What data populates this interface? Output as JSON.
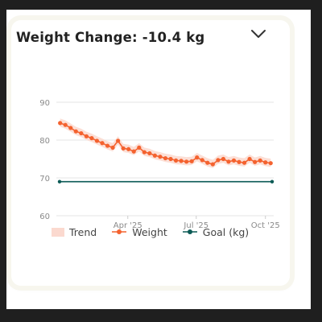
{
  "card": {
    "title": "Weight Change: -10.4 kg",
    "toggle_icon": "chevron-down-icon"
  },
  "colors": {
    "weight": "#f4622f",
    "trend": "#fbd9cf",
    "goal": "#0b5a55",
    "grid": "#e6e6e6",
    "tick_text": "#8a8a8a"
  },
  "chart_data": {
    "type": "line",
    "ylim": [
      60,
      90
    ],
    "y_ticks": [
      "90",
      "80",
      "70",
      "60"
    ],
    "x_ticks": [
      "Apr '25",
      "Jul '25",
      "Oct '25"
    ],
    "goal": 69,
    "legend": [
      "Trend",
      "Weight",
      "Goal (kg)"
    ],
    "legend_position": "bottom",
    "series": [
      {
        "name": "Weight",
        "x": [
          "2025-01-01",
          "2025-01-08",
          "2025-01-15",
          "2025-01-22",
          "2025-01-29",
          "2025-02-05",
          "2025-02-12",
          "2025-02-19",
          "2025-02-26",
          "2025-03-05",
          "2025-03-12",
          "2025-03-19",
          "2025-03-26",
          "2025-04-02",
          "2025-04-09",
          "2025-04-16",
          "2025-04-23",
          "2025-04-30",
          "2025-05-07",
          "2025-05-14",
          "2025-05-21",
          "2025-05-28",
          "2025-06-04",
          "2025-06-11",
          "2025-06-18",
          "2025-06-25",
          "2025-07-02",
          "2025-07-09",
          "2025-07-16",
          "2025-07-23",
          "2025-07-30",
          "2025-08-06",
          "2025-08-13",
          "2025-08-20",
          "2025-08-27",
          "2025-09-03",
          "2025-09-10",
          "2025-09-17",
          "2025-09-24",
          "2025-10-01",
          "2025-10-08"
        ],
        "values": [
          84.5,
          84.0,
          83.2,
          82.3,
          81.8,
          81.0,
          80.5,
          79.8,
          79.2,
          78.5,
          78.0,
          79.8,
          77.8,
          77.6,
          77.0,
          78.0,
          76.8,
          76.5,
          75.9,
          75.6,
          75.2,
          75.0,
          74.6,
          74.5,
          74.3,
          74.4,
          75.4,
          74.7,
          74.0,
          73.6,
          74.7,
          75.0,
          74.3,
          74.6,
          74.2,
          74.0,
          75.0,
          74.2,
          74.6,
          74.1,
          73.9
        ]
      }
    ]
  },
  "legend": {
    "trend": "Trend",
    "weight": "Weight",
    "goal": "Goal (kg)"
  }
}
